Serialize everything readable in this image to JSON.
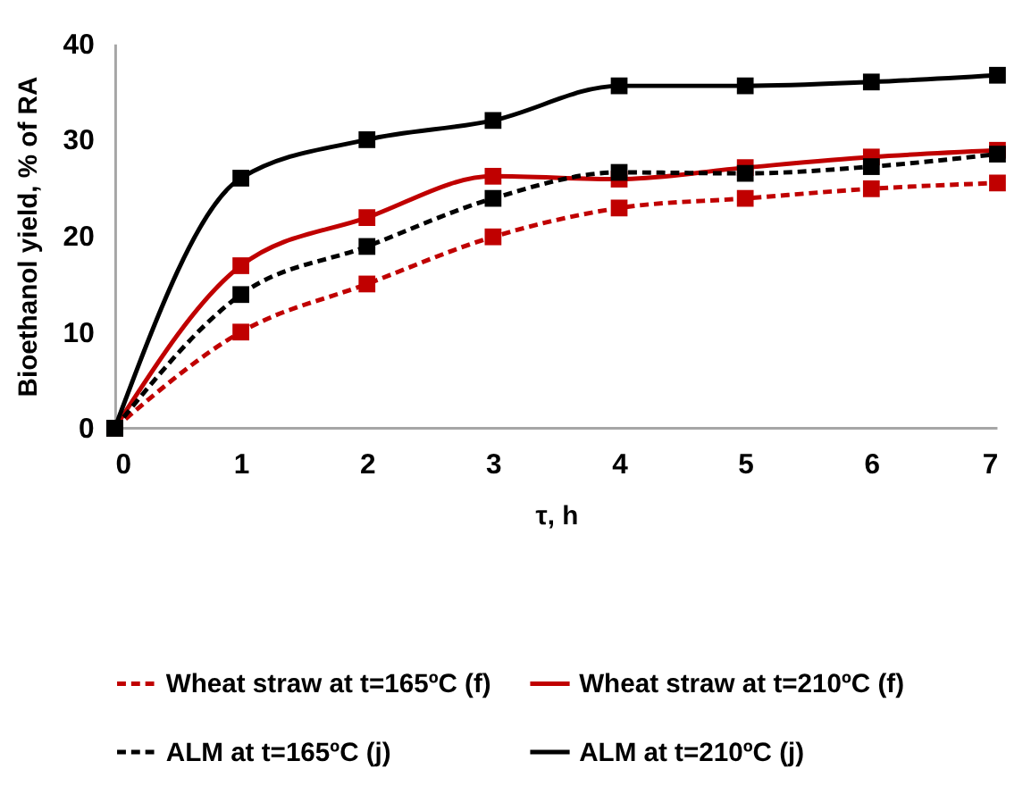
{
  "chart_data": {
    "type": "line",
    "xlabel": "τ, h",
    "ylabel": "Bioethanol yield, % of RA",
    "x": [
      0,
      1,
      2,
      3,
      4,
      5,
      6,
      7
    ],
    "xlim": [
      0,
      7
    ],
    "xticks": [
      0,
      1,
      2,
      3,
      4,
      5,
      6,
      7
    ],
    "ylim": [
      0,
      40
    ],
    "yticks": [
      0,
      10,
      20,
      30,
      40
    ],
    "marker": "square",
    "grid": false,
    "legend": "bottom",
    "series": [
      {
        "name": "Wheat straw at  t=165ºC (f)",
        "color": "#c00000",
        "line_style": "dashed",
        "values": [
          0,
          10,
          15,
          19.9,
          22.9,
          23.9,
          24.9,
          25.5
        ]
      },
      {
        "name": "Wheat straw at  t=210ºC (f)",
        "color": "#c00000",
        "line_style": "solid",
        "values": [
          0,
          16.9,
          21.9,
          26.2,
          25.9,
          27.1,
          28.2,
          28.9
        ]
      },
      {
        "name": "ALM at t=165ºC (j)",
        "color": "#000000",
        "line_style": "dashed",
        "values": [
          0,
          13.9,
          18.9,
          23.9,
          26.6,
          26.5,
          27.2,
          28.5
        ]
      },
      {
        "name": "ALM at t=210ºC (j)",
        "color": "#000000",
        "line_style": "solid",
        "values": [
          0,
          26,
          30,
          32,
          35.6,
          35.6,
          36,
          36.7
        ]
      }
    ]
  }
}
